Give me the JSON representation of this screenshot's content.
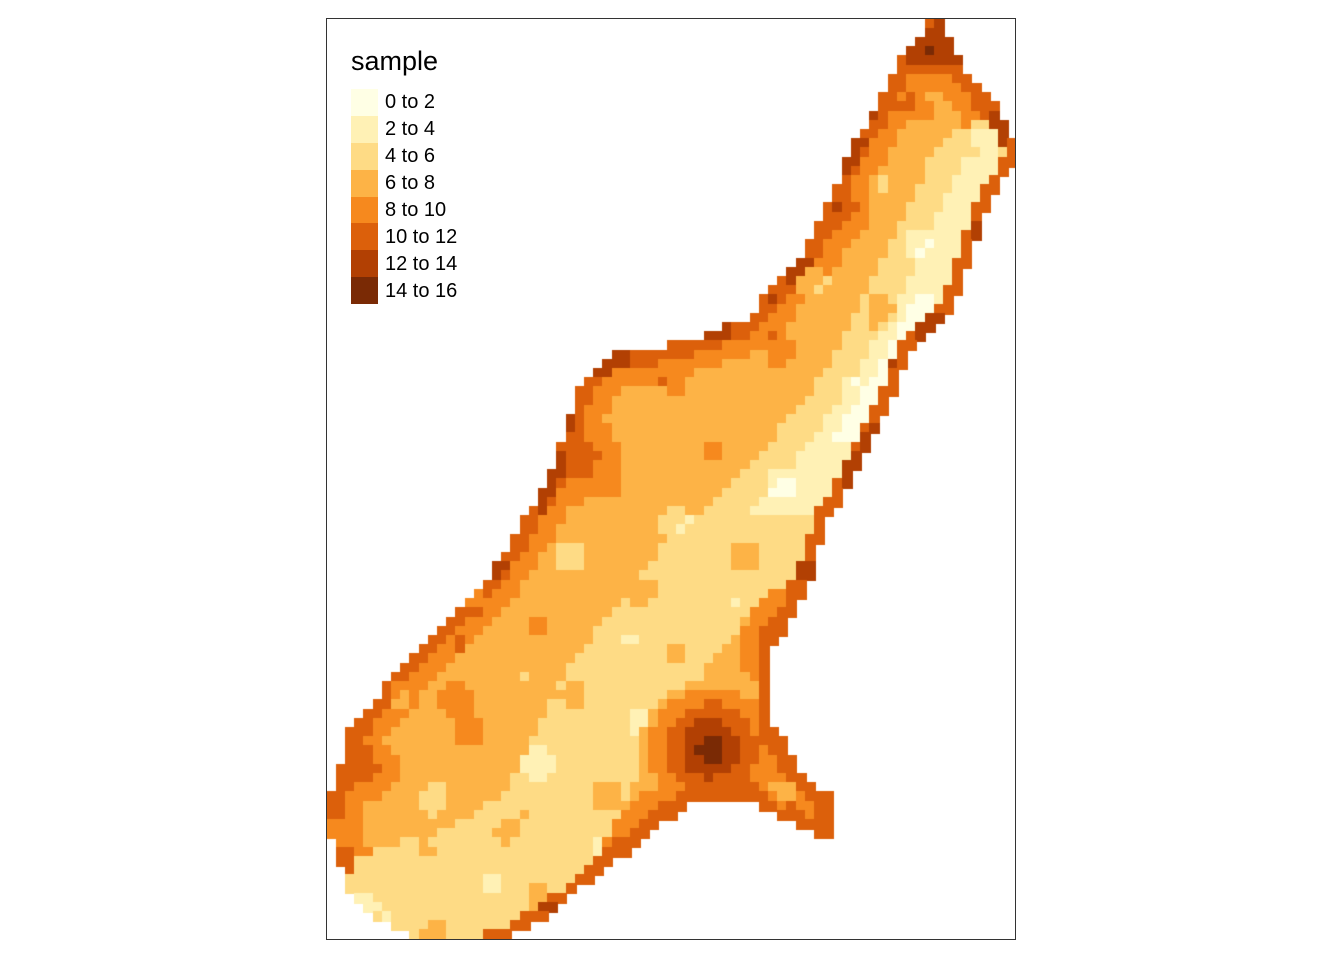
{
  "map": {
    "legend": {
      "title": "sample",
      "classes": [
        {
          "label": "0 to 2",
          "color": "#FFFFE5"
        },
        {
          "label": "2 to 4",
          "color": "#FFF1B5"
        },
        {
          "label": "4 to 6",
          "color": "#FEDB85"
        },
        {
          "label": "6 to 8",
          "color": "#FDB346"
        },
        {
          "label": "8 to 10",
          "color": "#F6891E"
        },
        {
          "label": "10 to 12",
          "color": "#DC600B"
        },
        {
          "label": "12 to 14",
          "color": "#B24003"
        },
        {
          "label": "14 to 16",
          "color": "#7A2A05"
        }
      ]
    }
  }
}
